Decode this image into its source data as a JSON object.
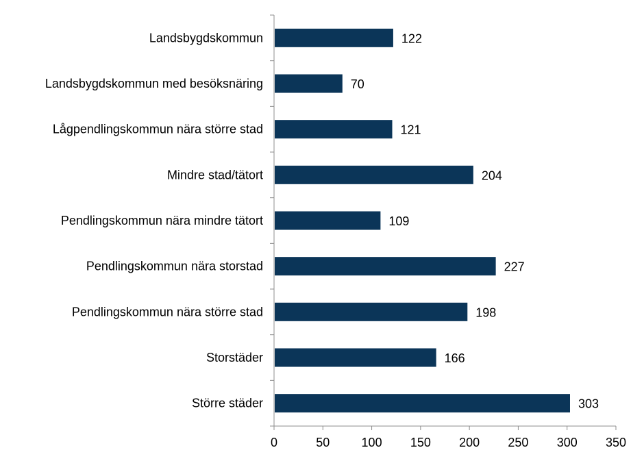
{
  "chart_data": {
    "type": "bar",
    "orientation": "horizontal",
    "title": "",
    "xlabel": "",
    "ylabel": "",
    "categories": [
      "Landsbygdskommun",
      "Landsbygdskommun med besöksnäring",
      "Lågpendlingskommun nära större stad",
      "Mindre stad/tätort",
      "Pendlingskommun nära mindre tätort",
      "Pendlingskommun nära storstad",
      "Pendlingskommun nära större stad",
      "Storstäder",
      "Större städer"
    ],
    "values": [
      122,
      70,
      121,
      204,
      109,
      227,
      198,
      166,
      303
    ],
    "xlim": [
      0,
      350
    ],
    "xticks": [
      0,
      50,
      100,
      150,
      200,
      250,
      300,
      350
    ],
    "grid": false,
    "legend": "none",
    "data_labels": true,
    "bar_color": "#0b3558"
  }
}
